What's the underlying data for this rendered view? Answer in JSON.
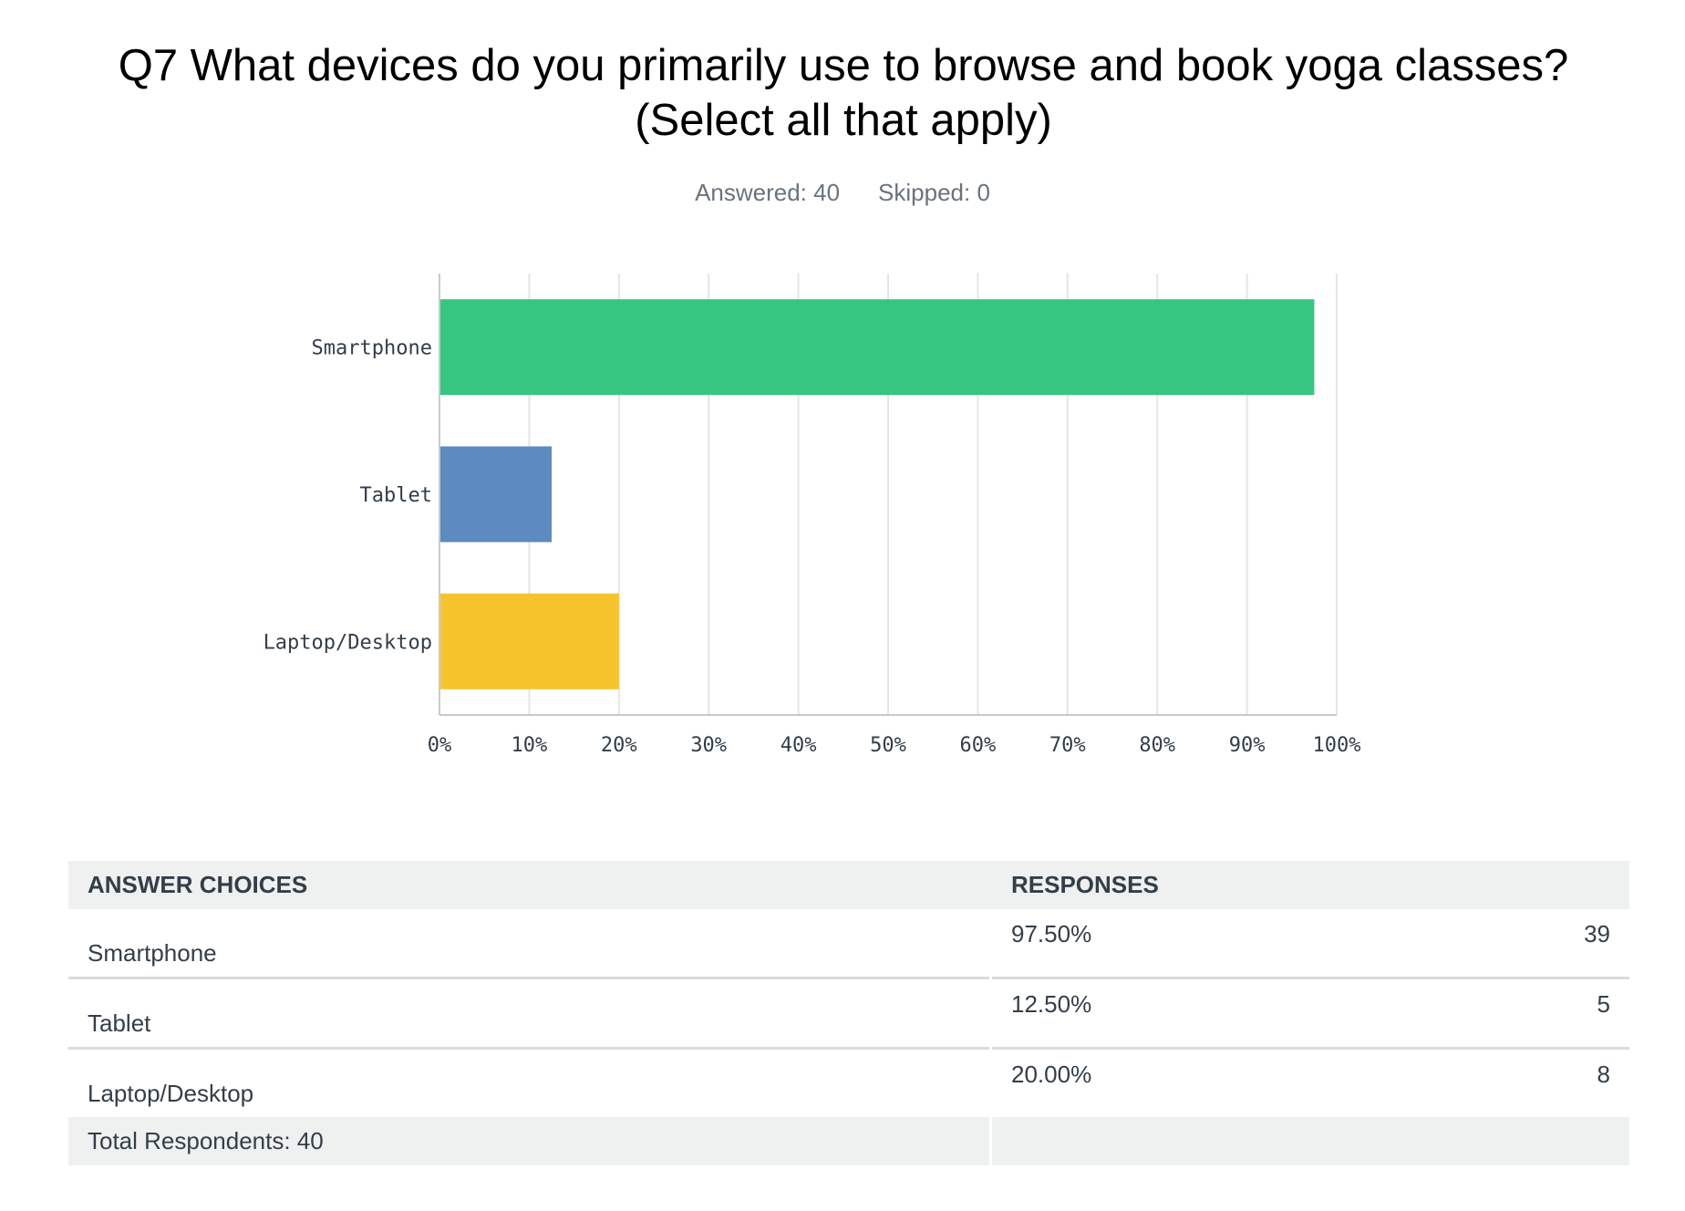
{
  "question": {
    "title_line1": "Q7 What devices do you primarily use to browse and book yoga classes?",
    "title_line2": "(Select all that apply)",
    "answered": "Answered: 40",
    "skipped": "Skipped: 0"
  },
  "chart_data": {
    "type": "bar",
    "orientation": "horizontal",
    "categories": [
      "Smartphone",
      "Tablet",
      "Laptop/Desktop"
    ],
    "values": [
      97.5,
      12.5,
      20.0
    ],
    "colors": [
      "#36c681",
      "#5e8bbf",
      "#f7c32c"
    ],
    "xlim": [
      0,
      100
    ],
    "x_ticks": [
      "0%",
      "10%",
      "20%",
      "30%",
      "40%",
      "50%",
      "60%",
      "70%",
      "80%",
      "90%",
      "100%"
    ],
    "grid": true
  },
  "table": {
    "headers": {
      "choices": "ANSWER CHOICES",
      "responses": "RESPONSES"
    },
    "rows": [
      {
        "choice": "Smartphone",
        "percent": "97.50%",
        "count": "39"
      },
      {
        "choice": "Tablet",
        "percent": "12.50%",
        "count": "5"
      },
      {
        "choice": "Laptop/Desktop",
        "percent": "20.00%",
        "count": "8"
      }
    ],
    "total": "Total Respondents: 40"
  }
}
